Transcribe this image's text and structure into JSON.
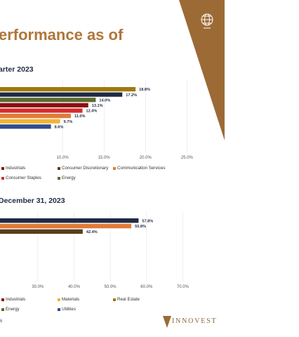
{
  "header": {
    "title": "erformance as of"
  },
  "logo": {
    "text": "INNOVEST",
    "icon": "globe-icon"
  },
  "footer": {
    "page_number": "6"
  },
  "colors": {
    "accent": "#9c6a35",
    "navy": "#1f2a44",
    "orange": "#e07b39",
    "olive": "#8a8b2a"
  },
  "chart_data": [
    {
      "type": "bar",
      "orientation": "horizontal",
      "title": "arter 2023",
      "values": [
        18.8,
        17.2,
        14.0,
        13.1,
        12.4,
        11.0,
        9.7,
        8.6
      ],
      "value_labels": [
        "18.8%",
        "17.2%",
        "14.0%",
        "13.1%",
        "12.4%",
        "11.0%",
        "9.7%",
        "8.6%"
      ],
      "bar_colors": [
        "#a0790e",
        "#1f2a44",
        "#5c6b2e",
        "#8b0f12",
        "#d42e2e",
        "#e07b39",
        "#f2b234",
        "#2f4d8a"
      ],
      "x_ticks": [
        "10.0%",
        "15.0%",
        "20.0%",
        "25.0%"
      ],
      "xlim": [
        5.5,
        27.0
      ],
      "legend": [
        {
          "name": "Industrials",
          "color": "#8b0f12"
        },
        {
          "name": "Consumer Discretionary",
          "color": "#5a3e1b"
        },
        {
          "name": "Communication Services",
          "color": "#e07b39"
        },
        {
          "name": "Consumer Staples",
          "color": "#d42e2e"
        },
        {
          "name": "Energy",
          "color": "#5c6b2e"
        }
      ]
    },
    {
      "type": "bar",
      "orientation": "horizontal",
      "title": "December 31, 2023",
      "values": [
        57.8,
        55.8,
        42.4
      ],
      "value_labels": [
        "57.8%",
        "55.8%",
        "42.4%"
      ],
      "bar_colors": [
        "#1f2a44",
        "#e07b39",
        "#5a3e1b"
      ],
      "x_ticks": [
        "30.0%",
        "40.0%",
        "50.0%",
        "60.0%",
        "70.0%"
      ],
      "xlim": [
        25.0,
        76.5
      ],
      "legend": [
        {
          "name": "Industrials",
          "color": "#8b0f12"
        },
        {
          "name": "Materials",
          "color": "#f2b234"
        },
        {
          "name": "Real Estate",
          "color": "#a0790e"
        },
        {
          "name": "Energy",
          "color": "#5c6b2e"
        },
        {
          "name": "Utilities",
          "color": "#2f4d8a"
        }
      ]
    }
  ]
}
